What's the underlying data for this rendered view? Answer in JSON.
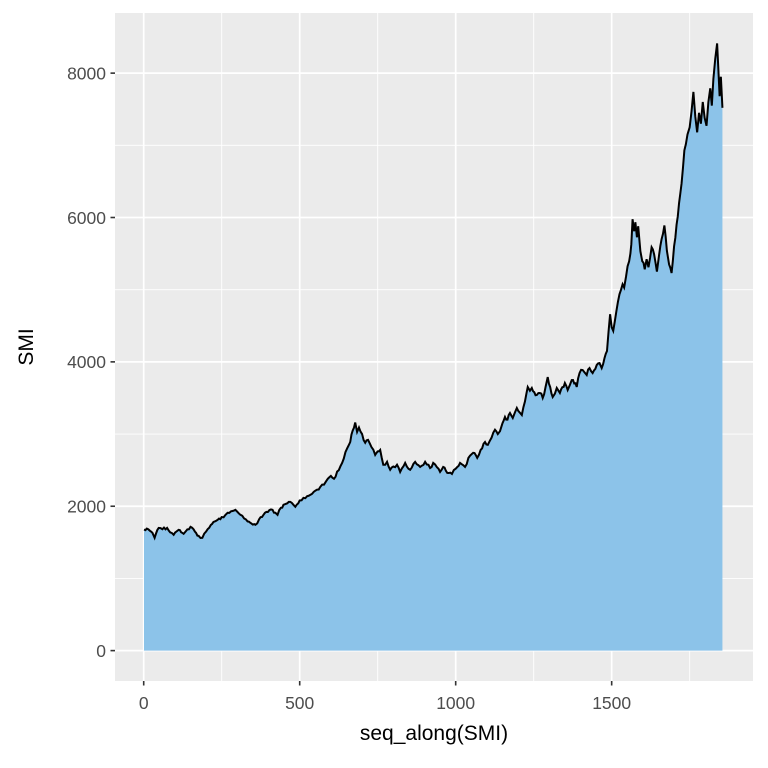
{
  "figure": {
    "background": "#FFFFFF",
    "panel_background": "#EBEBEB"
  },
  "chart_data": {
    "type": "area",
    "title": "",
    "xlabel": "seq_along(SMI)",
    "ylabel": "SMI",
    "legend": "none",
    "grid": true,
    "x_major_ticks": [
      0,
      500,
      1000,
      1500
    ],
    "x_minor_ticks": [
      250,
      750,
      1250,
      1750
    ],
    "y_major_ticks": [
      0,
      2000,
      4000,
      6000,
      8000
    ],
    "y_minor_ticks": [
      1000,
      3000,
      5000,
      7000
    ],
    "xlim": [
      -92,
      1953
    ],
    "ylim": [
      -421,
      8833
    ],
    "panel_bg": "#EBEBEB",
    "grid_color": "#FFFFFF",
    "area_fill": "#87C1E8",
    "line_color": "#000000",
    "tick_label_color": "#4D4D4D",
    "tick_mark_color": "#333333",
    "axis_title_color": "#000000",
    "series": [
      {
        "name": "SMI",
        "points": [
          [
            1,
            1678
          ],
          [
            10,
            1690
          ],
          [
            20,
            1660
          ],
          [
            28,
            1632
          ],
          [
            35,
            1563
          ],
          [
            48,
            1700
          ],
          [
            60,
            1682
          ],
          [
            75,
            1700
          ],
          [
            90,
            1630
          ],
          [
            96,
            1604
          ],
          [
            105,
            1650
          ],
          [
            112,
            1673
          ],
          [
            120,
            1640
          ],
          [
            128,
            1618
          ],
          [
            140,
            1680
          ],
          [
            150,
            1715
          ],
          [
            160,
            1680
          ],
          [
            168,
            1630
          ],
          [
            176,
            1590
          ],
          [
            188,
            1563
          ],
          [
            200,
            1650
          ],
          [
            215,
            1740
          ],
          [
            228,
            1790
          ],
          [
            237,
            1812
          ],
          [
            250,
            1850
          ],
          [
            262,
            1880
          ],
          [
            269,
            1909
          ],
          [
            280,
            1930
          ],
          [
            294,
            1950
          ],
          [
            305,
            1900
          ],
          [
            310,
            1881
          ],
          [
            322,
            1830
          ],
          [
            333,
            1790
          ],
          [
            342,
            1770
          ],
          [
            350,
            1745
          ],
          [
            358,
            1743
          ],
          [
            370,
            1820
          ],
          [
            384,
            1881
          ],
          [
            398,
            1920
          ],
          [
            413,
            1950
          ],
          [
            422,
            1910
          ],
          [
            429,
            1881
          ],
          [
            440,
            1980
          ],
          [
            448,
            2020
          ],
          [
            460,
            2040
          ],
          [
            470,
            2061
          ],
          [
            480,
            2020
          ],
          [
            486,
            1992
          ],
          [
            500,
            2080
          ],
          [
            512,
            2116
          ],
          [
            524,
            2140
          ],
          [
            534,
            2158
          ],
          [
            545,
            2200
          ],
          [
            556,
            2230
          ],
          [
            566,
            2268
          ],
          [
            578,
            2300
          ],
          [
            590,
            2380
          ],
          [
            600,
            2420
          ],
          [
            610,
            2380
          ],
          [
            620,
            2480
          ],
          [
            636,
            2600
          ],
          [
            652,
            2800
          ],
          [
            662,
            2890
          ],
          [
            670,
            3050
          ],
          [
            678,
            3160
          ],
          [
            684,
            3030
          ],
          [
            690,
            3090
          ],
          [
            700,
            3000
          ],
          [
            710,
            2880
          ],
          [
            719,
            2920
          ],
          [
            730,
            2820
          ],
          [
            742,
            2711
          ],
          [
            750,
            2760
          ],
          [
            758,
            2780
          ],
          [
            768,
            2575
          ],
          [
            780,
            2615
          ],
          [
            790,
            2505
          ],
          [
            800,
            2550
          ],
          [
            812,
            2575
          ],
          [
            822,
            2475
          ],
          [
            838,
            2600
          ],
          [
            854,
            2505
          ],
          [
            870,
            2615
          ],
          [
            886,
            2545
          ],
          [
            902,
            2615
          ],
          [
            918,
            2530
          ],
          [
            928,
            2600
          ],
          [
            940,
            2540
          ],
          [
            950,
            2475
          ],
          [
            960,
            2545
          ],
          [
            973,
            2462
          ],
          [
            988,
            2448
          ],
          [
            1000,
            2520
          ],
          [
            1014,
            2600
          ],
          [
            1030,
            2545
          ],
          [
            1046,
            2700
          ],
          [
            1056,
            2740
          ],
          [
            1069,
            2670
          ],
          [
            1080,
            2780
          ],
          [
            1094,
            2890
          ],
          [
            1103,
            2850
          ],
          [
            1115,
            2950
          ],
          [
            1126,
            3060
          ],
          [
            1135,
            3000
          ],
          [
            1142,
            3040
          ],
          [
            1150,
            3150
          ],
          [
            1158,
            3237
          ],
          [
            1166,
            3200
          ],
          [
            1174,
            3292
          ],
          [
            1183,
            3223
          ],
          [
            1190,
            3300
          ],
          [
            1196,
            3361
          ],
          [
            1205,
            3300
          ],
          [
            1212,
            3264
          ],
          [
            1222,
            3450
          ],
          [
            1231,
            3652
          ],
          [
            1238,
            3600
          ],
          [
            1244,
            3638
          ],
          [
            1252,
            3580
          ],
          [
            1260,
            3541
          ],
          [
            1270,
            3569
          ],
          [
            1279,
            3500
          ],
          [
            1288,
            3650
          ],
          [
            1295,
            3790
          ],
          [
            1303,
            3650
          ],
          [
            1311,
            3513
          ],
          [
            1318,
            3560
          ],
          [
            1324,
            3638
          ],
          [
            1334,
            3569
          ],
          [
            1342,
            3650
          ],
          [
            1350,
            3707
          ],
          [
            1359,
            3610
          ],
          [
            1366,
            3680
          ],
          [
            1372,
            3748
          ],
          [
            1380,
            3700
          ],
          [
            1388,
            3652
          ],
          [
            1397,
            3845
          ],
          [
            1407,
            3887
          ],
          [
            1414,
            3850
          ],
          [
            1420,
            3818
          ],
          [
            1429,
            3914
          ],
          [
            1439,
            3845
          ],
          [
            1452,
            3956
          ],
          [
            1461,
            3983
          ],
          [
            1468,
            3914
          ],
          [
            1477,
            4052
          ],
          [
            1485,
            4150
          ],
          [
            1490,
            4420
          ],
          [
            1495,
            4660
          ],
          [
            1500,
            4480
          ],
          [
            1505,
            4430
          ],
          [
            1510,
            4560
          ],
          [
            1515,
            4700
          ],
          [
            1520,
            4830
          ],
          [
            1525,
            4936
          ],
          [
            1530,
            5000
          ],
          [
            1535,
            5075
          ],
          [
            1540,
            5030
          ],
          [
            1546,
            5180
          ],
          [
            1551,
            5325
          ],
          [
            1556,
            5394
          ],
          [
            1560,
            5500
          ],
          [
            1563,
            5630
          ],
          [
            1567,
            5976
          ],
          [
            1572,
            5810
          ],
          [
            1576,
            5934
          ],
          [
            1581,
            5726
          ],
          [
            1585,
            5879
          ],
          [
            1592,
            5533
          ],
          [
            1598,
            5394
          ],
          [
            1606,
            5283
          ],
          [
            1612,
            5422
          ],
          [
            1618,
            5311
          ],
          [
            1628,
            5588
          ],
          [
            1636,
            5491
          ],
          [
            1645,
            5250
          ],
          [
            1652,
            5480
          ],
          [
            1660,
            5700
          ],
          [
            1669,
            5890
          ],
          [
            1677,
            5540
          ],
          [
            1684,
            5350
          ],
          [
            1692,
            5230
          ],
          [
            1700,
            5600
          ],
          [
            1708,
            5900
          ],
          [
            1716,
            6200
          ],
          [
            1724,
            6470
          ],
          [
            1733,
            6930
          ],
          [
            1743,
            7150
          ],
          [
            1750,
            7250
          ],
          [
            1756,
            7470
          ],
          [
            1762,
            7740
          ],
          [
            1768,
            7400
          ],
          [
            1774,
            7180
          ],
          [
            1780,
            7450
          ],
          [
            1786,
            7300
          ],
          [
            1792,
            7600
          ],
          [
            1798,
            7380
          ],
          [
            1804,
            7270
          ],
          [
            1810,
            7600
          ],
          [
            1816,
            7790
          ],
          [
            1821,
            7550
          ],
          [
            1826,
            7920
          ],
          [
            1832,
            8200
          ],
          [
            1838,
            8412
          ],
          [
            1842,
            8050
          ],
          [
            1846,
            7680
          ],
          [
            1850,
            7950
          ],
          [
            1855,
            7520
          ]
        ]
      }
    ]
  }
}
